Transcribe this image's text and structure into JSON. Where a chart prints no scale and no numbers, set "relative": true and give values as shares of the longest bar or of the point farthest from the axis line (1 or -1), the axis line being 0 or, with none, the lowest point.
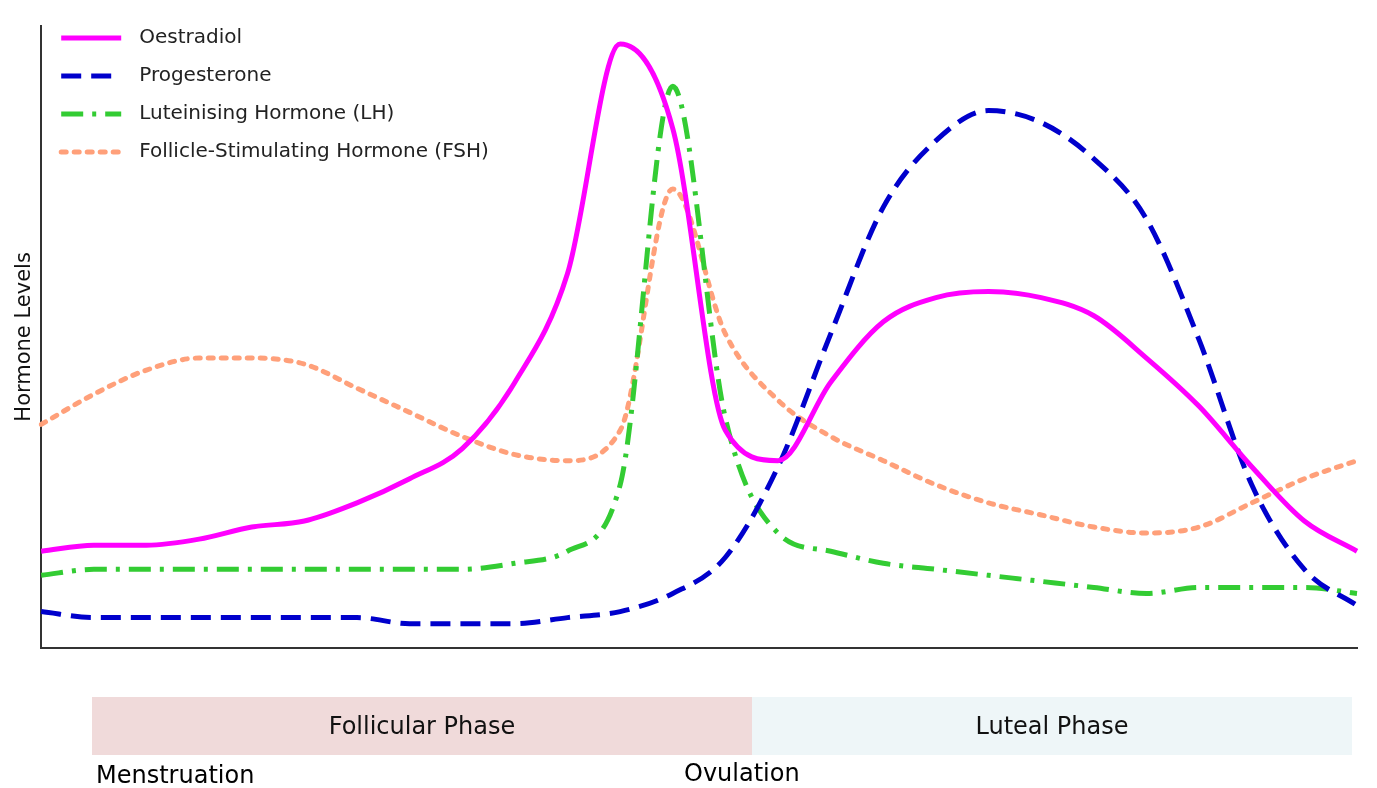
{
  "chart_data": {
    "type": "line",
    "relative": true,
    "ylabel": "Hormone Levels",
    "legend": "top left",
    "grid": false,
    "marker": "none",
    "categories": [
      null,
      null,
      null,
      null,
      null,
      null,
      null,
      null,
      null,
      null,
      null,
      null,
      null,
      null,
      null,
      null,
      null,
      null,
      null,
      null,
      null,
      null,
      null,
      null,
      null,
      null
    ],
    "series": [
      {
        "name": "Oestradiol",
        "color": "#ff00ff",
        "line_style": "solid",
        "values": [
          0.16,
          0.17,
          0.17,
          0.18,
          0.2,
          0.21,
          0.24,
          0.28,
          0.33,
          0.44,
          0.62,
          1.0,
          0.86,
          0.36,
          0.31,
          0.44,
          0.54,
          0.58,
          0.59,
          0.58,
          0.55,
          0.48,
          0.4,
          0.3,
          0.21,
          0.16
        ]
      },
      {
        "name": "Progesterone",
        "color": "#0000cc",
        "line_style": "dashed",
        "values": [
          0.06,
          0.05,
          0.05,
          0.05,
          0.05,
          0.05,
          0.05,
          0.04,
          0.04,
          0.04,
          0.05,
          0.06,
          0.09,
          0.15,
          0.3,
          0.52,
          0.73,
          0.84,
          0.89,
          0.87,
          0.81,
          0.71,
          0.51,
          0.27,
          0.13,
          0.07
        ]
      },
      {
        "name": "Luteinising Hormone (LH)",
        "color": "#33cc33",
        "line_style": "dashdot",
        "values": [
          0.12,
          0.13,
          0.13,
          0.13,
          0.13,
          0.13,
          0.13,
          0.13,
          0.13,
          0.14,
          0.16,
          0.27,
          0.93,
          0.38,
          0.19,
          0.16,
          0.14,
          0.13,
          0.12,
          0.11,
          0.1,
          0.09,
          0.1,
          0.1,
          0.1,
          0.09
        ]
      },
      {
        "name": "Follicle-Stimulating Hormone (FSH)",
        "color": "#ffa07a",
        "line_style": "dotted",
        "values": [
          0.37,
          0.42,
          0.46,
          0.48,
          0.48,
          0.47,
          0.43,
          0.39,
          0.35,
          0.32,
          0.31,
          0.36,
          0.76,
          0.52,
          0.41,
          0.35,
          0.31,
          0.27,
          0.24,
          0.22,
          0.2,
          0.19,
          0.2,
          0.24,
          0.28,
          0.31
        ]
      }
    ],
    "annotations": [
      "Follicular Phase",
      "Luteal Phase",
      "Menstruation",
      "Ovulation"
    ]
  }
}
